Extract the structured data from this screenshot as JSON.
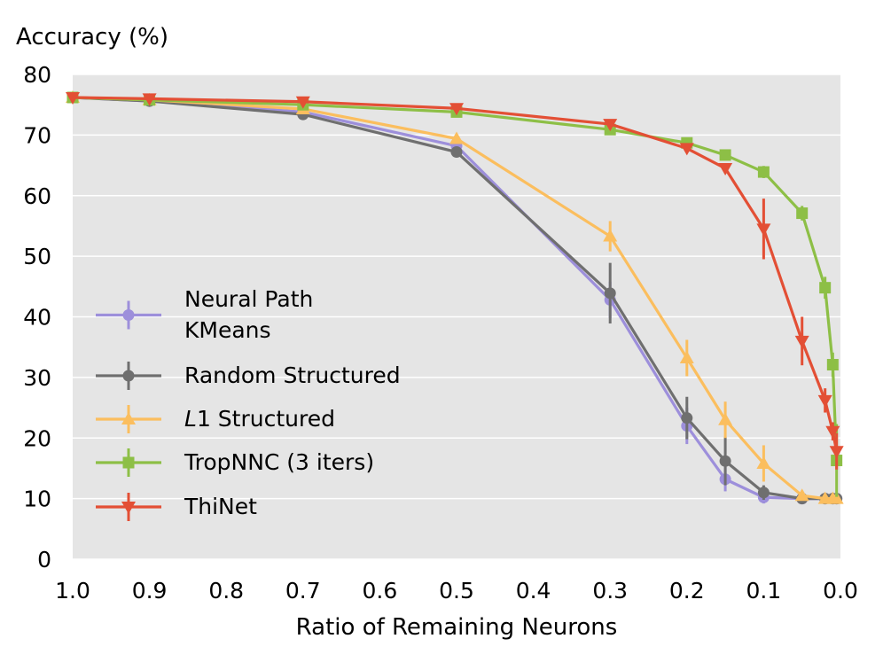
{
  "chart_data": {
    "type": "line",
    "ylabel": "Accuracy (%)",
    "xlabel": "Ratio of Remaining Neurons",
    "xlim": [
      1.0,
      0.0
    ],
    "ylim": [
      0,
      80
    ],
    "xticks": [
      "1.0",
      "0.9",
      "0.8",
      "0.7",
      "0.6",
      "0.5",
      "0.4",
      "0.3",
      "0.2",
      "0.1",
      "0.0"
    ],
    "yticks": [
      "0",
      "10",
      "20",
      "30",
      "40",
      "50",
      "60",
      "70",
      "80"
    ],
    "grid": true,
    "background": "#e5e5e5",
    "legend_position": "lower-left",
    "series": [
      {
        "name": "Neural Path KMeans",
        "legend_lines": [
          "Neural Path",
          "KMeans"
        ],
        "color": "#9d8fdb",
        "marker": "circle",
        "x": [
          1.0,
          0.9,
          0.7,
          0.5,
          0.3,
          0.2,
          0.15,
          0.1,
          0.05,
          0.02,
          0.01,
          0.005
        ],
        "y": [
          76.2,
          75.6,
          73.8,
          68.2,
          42.8,
          22.0,
          13.2,
          10.2,
          10.0,
          10.0,
          10.0,
          10.0
        ],
        "err": [
          0.3,
          0.3,
          0.5,
          0.8,
          3.0,
          3.0,
          2.0,
          1.0,
          0.3,
          0.2,
          0.2,
          0.2
        ]
      },
      {
        "name": "Random Structured",
        "legend_lines": [
          "Random Structured"
        ],
        "color": "#6f6f6f",
        "marker": "circle",
        "x": [
          1.0,
          0.9,
          0.7,
          0.5,
          0.3,
          0.2,
          0.15,
          0.1,
          0.05,
          0.02,
          0.01,
          0.005
        ],
        "y": [
          76.2,
          75.6,
          73.4,
          67.2,
          43.9,
          23.3,
          16.2,
          11.0,
          10.0,
          10.0,
          10.0,
          10.0
        ],
        "err": [
          0.3,
          0.3,
          0.5,
          0.8,
          5.0,
          3.5,
          4.0,
          1.2,
          0.5,
          0.5,
          0.5,
          0.3
        ]
      },
      {
        "name": "L1 Structured",
        "legend_lines": [
          "L1 Structured"
        ],
        "color": "#fbbe5e",
        "marker": "triangle-up",
        "x": [
          1.0,
          0.9,
          0.7,
          0.5,
          0.3,
          0.2,
          0.15,
          0.1,
          0.05,
          0.02,
          0.01,
          0.005
        ],
        "y": [
          76.2,
          75.8,
          74.3,
          69.4,
          53.3,
          33.2,
          23.0,
          15.8,
          10.5,
          10.0,
          10.0,
          10.0
        ],
        "err": [
          0.3,
          0.3,
          0.5,
          0.8,
          2.5,
          3.0,
          3.0,
          3.0,
          0.8,
          0.3,
          0.3,
          0.3
        ]
      },
      {
        "name": "TropNNC (3 iters)",
        "legend_lines": [
          "TropNNC (3 iters)"
        ],
        "color": "#8dbf46",
        "marker": "square",
        "x": [
          1.0,
          0.9,
          0.7,
          0.5,
          0.3,
          0.2,
          0.15,
          0.1,
          0.05,
          0.02,
          0.01,
          0.005
        ],
        "y": [
          76.2,
          75.8,
          75.0,
          73.8,
          70.9,
          68.7,
          66.7,
          63.9,
          57.1,
          44.8,
          32.1,
          16.3
        ],
        "err": [
          0.3,
          0.3,
          0.3,
          0.5,
          0.5,
          0.5,
          0.8,
          1.0,
          1.2,
          1.8,
          2.0,
          6.0
        ]
      },
      {
        "name": "ThiNet",
        "legend_lines": [
          "ThiNet"
        ],
        "color": "#e34f35",
        "marker": "triangle-down",
        "x": [
          1.0,
          0.9,
          0.7,
          0.5,
          0.3,
          0.2,
          0.15,
          0.1,
          0.05,
          0.02,
          0.01,
          0.005
        ],
        "y": [
          76.2,
          76.0,
          75.5,
          74.4,
          71.8,
          67.8,
          64.5,
          54.5,
          36.0,
          26.2,
          21.1,
          17.8
        ],
        "err": [
          0.3,
          0.3,
          0.3,
          0.3,
          0.5,
          0.5,
          0.8,
          5.0,
          4.0,
          2.0,
          1.5,
          3.0
        ]
      }
    ]
  }
}
